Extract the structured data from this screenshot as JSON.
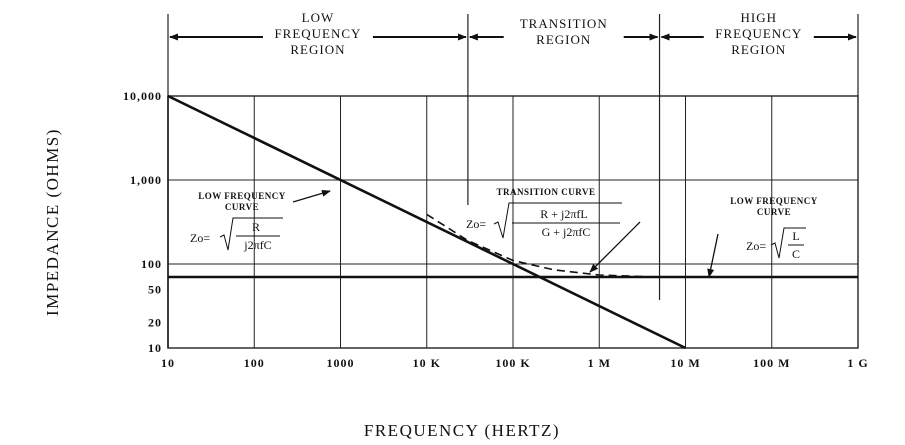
{
  "chart_data": {
    "type": "line",
    "xlabel": "FREQUENCY (HERTZ)",
    "ylabel": "IMPEDANCE (OHMS)",
    "x_scale": "log",
    "y_scale": "log",
    "xlim": [
      10,
      1000000000
    ],
    "ylim": [
      10,
      10000
    ],
    "x_ticks": [
      {
        "value": 10,
        "label": "10"
      },
      {
        "value": 100,
        "label": "100"
      },
      {
        "value": 1000,
        "label": "1000"
      },
      {
        "value": 10000,
        "label": "10 K"
      },
      {
        "value": 100000,
        "label": "100 K"
      },
      {
        "value": 1000000,
        "label": "1 M"
      },
      {
        "value": 10000000,
        "label": "10 M"
      },
      {
        "value": 100000000,
        "label": "100 M"
      },
      {
        "value": 1000000000,
        "label": "1 G"
      }
    ],
    "y_ticks": [
      {
        "value": 10000,
        "label": "10,000"
      },
      {
        "value": 1000,
        "label": "1,000"
      },
      {
        "value": 100,
        "label": "100"
      },
      {
        "value": 50,
        "label": "50"
      },
      {
        "value": 20,
        "label": "20"
      },
      {
        "value": 10,
        "label": "10"
      }
    ],
    "regions": [
      {
        "label_lines": [
          "LOW",
          "FREQUENCY",
          "REGION"
        ],
        "x_range": [
          10,
          30000
        ]
      },
      {
        "label_lines": [
          "TRANSITION",
          "REGION"
        ],
        "x_range": [
          30000,
          5000000
        ]
      },
      {
        "label_lines": [
          "HIGH",
          "FREQUENCY",
          "REGION"
        ],
        "x_range": [
          5000000,
          1000000000
        ]
      }
    ],
    "series": [
      {
        "style": "solid",
        "x": [
          10,
          10000000
        ],
        "y": [
          10000,
          10
        ]
      },
      {
        "style": "solid",
        "x": [
          10,
          1000000000
        ],
        "y": [
          70,
          70
        ]
      },
      {
        "style": "dashed",
        "x": [
          10000,
          30000,
          100000,
          300000,
          1000000,
          3000000,
          5000000
        ],
        "y": [
          390,
          190,
          110,
          85,
          74,
          71,
          70
        ]
      }
    ],
    "annotations": {
      "low": {
        "title_lines": [
          "LOW FREQUENCY",
          "CURVE"
        ],
        "lhs": "Zo=",
        "num": "R",
        "den": "j2πfC"
      },
      "transition": {
        "title": "TRANSITION CURVE",
        "lhs": "Zo=",
        "num": "R  +  j2πfL",
        "den": "G  +  j2πfC"
      },
      "high": {
        "title_lines": [
          "LOW FREQUENCY",
          "CURVE"
        ],
        "lhs": "Zo=",
        "num": "L",
        "den": "C"
      }
    },
    "grid": true
  }
}
